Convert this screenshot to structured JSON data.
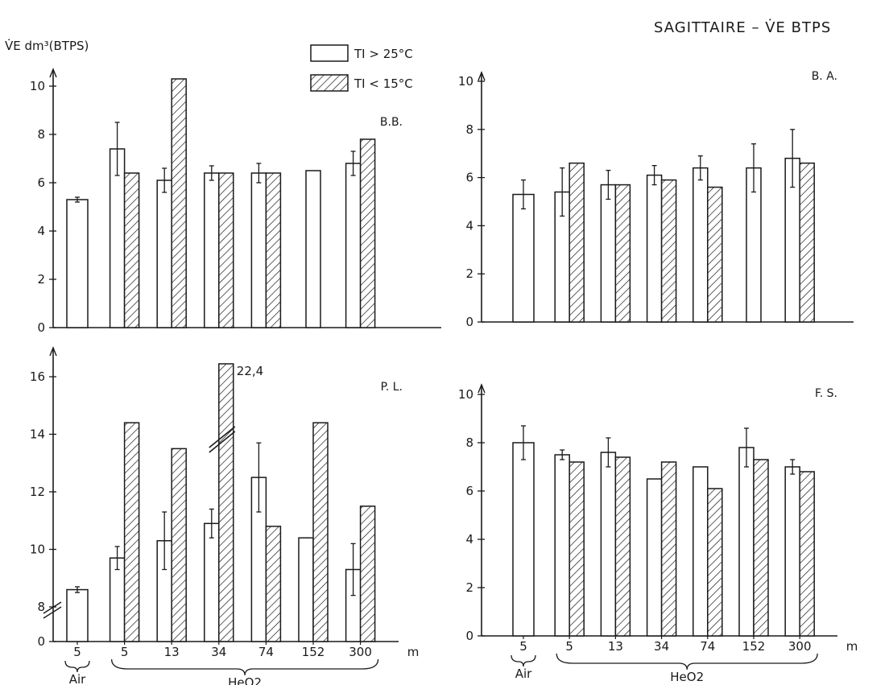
{
  "header": "SAGITTAIRE – V̇E BTPS",
  "y_axis_label": "V̇E dm³(BTPS)",
  "legend": [
    {
      "label": "TI  > 25°C",
      "pattern": "open"
    },
    {
      "label": "TI  < 15°C",
      "pattern": "hatched"
    }
  ],
  "x_unit": "m",
  "group_labels": {
    "air": "Air",
    "heo2": "HeO2"
  },
  "colors": {
    "ink": "#1a1a1a",
    "background": "#ffffff"
  },
  "chart_data": [
    {
      "type": "bar",
      "title": "B.B.",
      "categories": [
        "5",
        "5",
        "13",
        "34",
        "74",
        "152",
        "300"
      ],
      "ylim": [
        0,
        10
      ],
      "yticks": [
        "0",
        "2",
        "4",
        "6",
        "8",
        "10"
      ],
      "series": [
        {
          "name": "TI > 25°C",
          "values": [
            5.3,
            7.4,
            6.1,
            6.4,
            6.4,
            6.5,
            6.8
          ],
          "errors": [
            0.1,
            1.1,
            0.5,
            0.3,
            0.4,
            0,
            0.5
          ]
        },
        {
          "name": "TI < 15°C",
          "values": [
            null,
            6.4,
            10.3,
            6.4,
            6.4,
            null,
            7.8
          ]
        }
      ]
    },
    {
      "type": "bar",
      "title": "B. A.",
      "categories": [
        "5",
        "5",
        "13",
        "34",
        "74",
        "152",
        "300"
      ],
      "ylim": [
        0,
        10
      ],
      "yticks": [
        "0",
        "2",
        "4",
        "6",
        "8",
        "10"
      ],
      "series": [
        {
          "name": "TI > 25°C",
          "values": [
            5.3,
            5.4,
            5.7,
            6.1,
            6.4,
            6.4,
            6.8
          ],
          "errors": [
            0.6,
            1.0,
            0.6,
            0.4,
            0.5,
            1.0,
            1.2
          ]
        },
        {
          "name": "TI < 15°C",
          "values": [
            null,
            6.6,
            5.7,
            5.9,
            5.6,
            null,
            6.6
          ]
        }
      ]
    },
    {
      "type": "bar",
      "title": "P. L.",
      "categories": [
        "5",
        "5",
        "13",
        "34",
        "74",
        "152",
        "300"
      ],
      "ylim": [
        8,
        17
      ],
      "axis_break": true,
      "yticks": [
        "0",
        "8",
        "10",
        "12",
        "14",
        "16"
      ],
      "series": [
        {
          "name": "TI > 25°C",
          "values": [
            8.6,
            9.7,
            10.3,
            10.9,
            12.5,
            10.4,
            9.3
          ],
          "errors": [
            0.1,
            0.4,
            1.0,
            0.5,
            1.2,
            0,
            0.9
          ]
        },
        {
          "name": "TI < 15°C",
          "values": [
            null,
            14.4,
            13.5,
            22.4,
            10.8,
            14.4,
            11.5
          ]
        }
      ],
      "annotations": [
        "22,4"
      ]
    },
    {
      "type": "bar",
      "title": "F. S.",
      "categories": [
        "5",
        "5",
        "13",
        "34",
        "74",
        "152",
        "300"
      ],
      "ylim": [
        0,
        10
      ],
      "yticks": [
        "0",
        "2",
        "4",
        "6",
        "8",
        "10"
      ],
      "series": [
        {
          "name": "TI > 25°C",
          "values": [
            8.0,
            7.5,
            7.6,
            6.5,
            7.0,
            7.8,
            7.0
          ],
          "errors": [
            0.7,
            0.2,
            0.6,
            0,
            0,
            0.8,
            0.3
          ]
        },
        {
          "name": "TI < 15°C",
          "values": [
            null,
            7.2,
            7.4,
            7.2,
            6.1,
            7.3,
            6.8
          ]
        }
      ]
    }
  ]
}
